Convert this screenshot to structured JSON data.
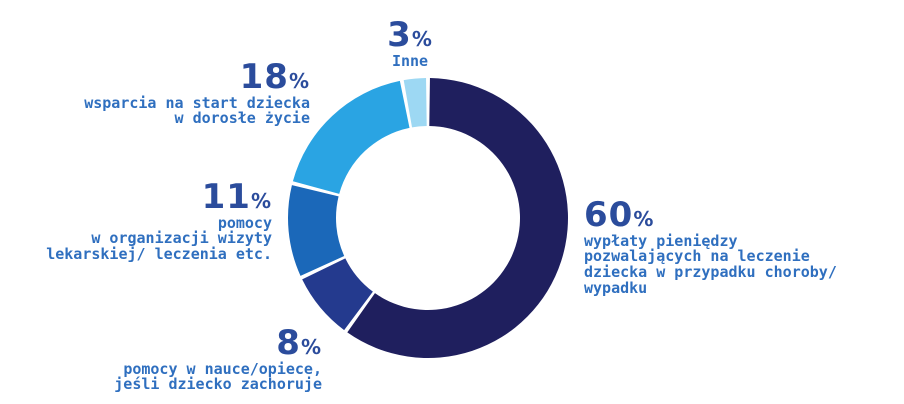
{
  "chart_data": {
    "type": "donut",
    "slices": [
      {
        "label": "wypłaty pieniędzy pozwalających na leczenie dziecka w przypadku choroby/ wypadku",
        "value": 60,
        "color": "#1f1f5e",
        "pct": "60"
      },
      {
        "label": "pomocy w nauce/opiece, jeśli dziecko zachoruje",
        "value": 8,
        "color": "#243a8e",
        "pct": "8"
      },
      {
        "label": "pomocy w organizacji wizyty lekarskiej/ leczenia etc.",
        "value": 11,
        "color": "#1b68b9",
        "pct": "11"
      },
      {
        "label": "wsparcia na start dziecka w dorosłe życie",
        "value": 18,
        "color": "#2aa4e3",
        "pct": "18"
      },
      {
        "label": "Inne",
        "value": 3,
        "color": "#9dd8f3",
        "pct": "3"
      }
    ],
    "unit": "%"
  },
  "labels": {
    "s60": {
      "pct": "60",
      "lines": [
        "wypłaty pieniędzy",
        "pozwalających na leczenie",
        "dziecka w przypadku choroby/",
        "wypadku"
      ]
    },
    "s8": {
      "pct": "8",
      "lines": [
        "pomocy w nauce/opiece,",
        "jeśli dziecko zachoruje"
      ]
    },
    "s11": {
      "pct": "11",
      "lines": [
        "pomocy",
        "w organizacji wizyty",
        "lekarskiej/ leczenia etc."
      ]
    },
    "s18": {
      "pct": "18",
      "lines": [
        "wsparcia na start dziecka",
        "w dorosłe życie"
      ]
    },
    "s3": {
      "pct": "3",
      "lines": [
        "Inne"
      ]
    },
    "percent_sign": "%"
  }
}
